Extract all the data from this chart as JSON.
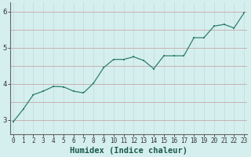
{
  "x": [
    0,
    1,
    2,
    3,
    4,
    5,
    6,
    7,
    8,
    9,
    10,
    11,
    12,
    13,
    14,
    15,
    16,
    17,
    18,
    19,
    20,
    21,
    22,
    23
  ],
  "y": [
    2.95,
    3.3,
    3.7,
    3.8,
    3.93,
    3.92,
    3.8,
    3.75,
    4.02,
    4.45,
    4.68,
    4.68,
    4.75,
    4.65,
    4.42,
    4.78,
    4.78,
    4.78,
    5.28,
    5.28,
    5.6,
    5.65,
    5.55,
    5.97
  ],
  "xlabel": "Humidex (Indice chaleur)",
  "ylim": [
    2.6,
    6.25
  ],
  "xlim": [
    -0.3,
    23.3
  ],
  "yticks": [
    3,
    4,
    5,
    6
  ],
  "ytick_labels": [
    "3",
    "4",
    "5",
    "6"
  ],
  "xticks": [
    0,
    1,
    2,
    3,
    4,
    5,
    6,
    7,
    8,
    9,
    10,
    11,
    12,
    13,
    14,
    15,
    16,
    17,
    18,
    19,
    20,
    21,
    22,
    23
  ],
  "xtick_labels": [
    "0",
    "1",
    "2",
    "3",
    "4",
    "5",
    "6",
    "7",
    "8",
    "9",
    "10",
    "11",
    "12",
    "13",
    "14",
    "15",
    "16",
    "17",
    "18",
    "19",
    "20",
    "21",
    "22",
    "23"
  ],
  "line_color": "#2d7f6e",
  "marker_color": "#2d7f6e",
  "bg_color": "#d5efee",
  "grid_color_v": "#c4dedd",
  "grid_color_h": "#c4a8a8",
  "spine_color": "#666666",
  "tick_label_fontsize": 5.5,
  "xlabel_fontsize": 7.5
}
